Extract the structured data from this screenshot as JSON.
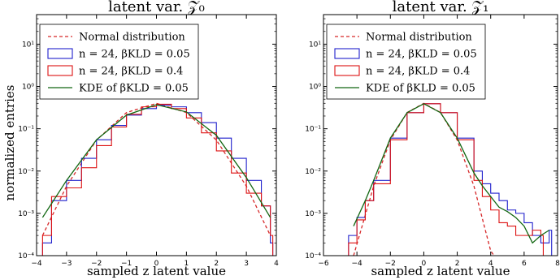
{
  "y_axis_label": "normalized entries",
  "chart_data": [
    {
      "type": "line",
      "title": "latent var. 𝒵₀",
      "xlabel": "sampled z latent value",
      "ylabel": "normalized entries",
      "xlim": [
        -4,
        4
      ],
      "ylim": [
        0.0001,
        50
      ],
      "yscale": "log",
      "xticks": [
        "−4",
        "−3",
        "−2",
        "−1",
        "0",
        "1",
        "2",
        "3",
        "4"
      ],
      "yticks": [
        "10⁻⁴",
        "10⁻³",
        "10⁻²",
        "10⁻¹",
        "10⁰",
        "10¹"
      ],
      "legend_position": "top-left",
      "legend": [
        "Normal distribution",
        "n = 24, βKLD = 0.05",
        "n = 24, βKLD = 0.4",
        "KDE of βKLD = 0.05"
      ],
      "series": [
        {
          "name": "Normal distribution",
          "color": "#d62728",
          "style": "dashed",
          "x": [
            -3.8,
            -3.0,
            -2.0,
            -1.0,
            0.0,
            1.0,
            2.0,
            3.0,
            3.8
          ],
          "y": [
            0.0003,
            0.0044,
            0.054,
            0.242,
            0.399,
            0.242,
            0.054,
            0.0044,
            0.0003
          ]
        },
        {
          "name": "n = 24, βKLD = 0.05",
          "color": "#1f1fcc",
          "style": "step",
          "x": [
            -3.8,
            -3.5,
            -3.0,
            -2.5,
            -2.0,
            -1.5,
            -1.0,
            -0.5,
            0.0,
            0.5,
            1.0,
            1.5,
            2.0,
            2.5,
            3.0,
            3.5,
            3.8
          ],
          "y": [
            0.0002,
            0.002,
            0.006,
            0.02,
            0.055,
            0.12,
            0.21,
            0.3,
            0.36,
            0.33,
            0.24,
            0.14,
            0.06,
            0.02,
            0.006,
            0.0015,
            0.0002
          ]
        },
        {
          "name": "n = 24, βKLD = 0.4",
          "color": "#dd1111",
          "style": "step",
          "x": [
            -3.8,
            -3.5,
            -3.0,
            -2.5,
            -2.0,
            -1.5,
            -1.0,
            -0.5,
            0.0,
            0.5,
            1.0,
            1.5,
            2.0,
            2.5,
            3.0,
            3.5,
            3.8
          ],
          "y": [
            0.0003,
            0.0025,
            0.004,
            0.012,
            0.04,
            0.11,
            0.22,
            0.33,
            0.38,
            0.3,
            0.18,
            0.08,
            0.03,
            0.009,
            0.003,
            0.0015,
            0.0003
          ]
        },
        {
          "name": "KDE of βKLD = 0.05",
          "color": "#116611",
          "style": "solid",
          "x": [
            -3.8,
            -3.0,
            -2.0,
            -1.0,
            0.0,
            1.0,
            2.0,
            3.0,
            3.8
          ],
          "y": [
            0.0008,
            0.006,
            0.055,
            0.21,
            0.37,
            0.25,
            0.07,
            0.007,
            0.0008
          ]
        }
      ]
    },
    {
      "type": "line",
      "title": "latent var. 𝒵₁",
      "xlabel": "sampled z latent value",
      "ylabel": "",
      "xlim": [
        -6,
        8
      ],
      "ylim": [
        0.0001,
        50
      ],
      "yscale": "log",
      "xticks": [
        "−6",
        "−4",
        "−2",
        "0",
        "2",
        "4",
        "6",
        "8"
      ],
      "yticks": [
        "10⁻⁴",
        "10⁻³",
        "10⁻²",
        "10⁻¹",
        "10⁰",
        "10¹"
      ],
      "legend_position": "top-left",
      "legend": [
        "Normal distribution",
        "n = 24, βKLD = 0.05",
        "n = 24, βKLD = 0.4",
        "KDE of βKLD = 0.05"
      ],
      "series": [
        {
          "name": "Normal distribution",
          "color": "#d62728",
          "style": "dashed",
          "x": [
            -4.2,
            -3.0,
            -2.0,
            -1.0,
            0.0,
            1.0,
            2.0,
            3.0,
            4.0,
            4.2
          ],
          "y": [
            0.0001,
            0.0044,
            0.054,
            0.242,
            0.399,
            0.242,
            0.054,
            0.0044,
            0.00013,
            0.0001
          ]
        },
        {
          "name": "n = 24, βKLD = 0.05",
          "color": "#1f1fcc",
          "style": "step",
          "x": [
            -4.5,
            -4.0,
            -3.5,
            -3.0,
            -2.0,
            -1.0,
            0.0,
            1.0,
            2.0,
            3.0,
            3.5,
            4.0,
            4.5,
            5.0,
            5.5,
            6.0,
            6.5,
            7.0,
            7.5
          ],
          "y": [
            0.0003,
            0.0008,
            0.002,
            0.006,
            0.06,
            0.24,
            0.39,
            0.24,
            0.06,
            0.01,
            0.005,
            0.003,
            0.002,
            0.0012,
            0.001,
            0.0006,
            0.0003,
            0.0002,
            0.0004
          ]
        },
        {
          "name": "n = 24, βKLD = 0.4",
          "color": "#dd1111",
          "style": "step",
          "x": [
            -4.5,
            -4.0,
            -3.5,
            -3.0,
            -2.0,
            -1.0,
            0.0,
            1.0,
            2.0,
            3.0,
            3.5,
            4.0,
            4.5,
            5.0,
            5.5,
            6.0,
            6.5,
            7.0
          ],
          "y": [
            0.0002,
            0.0007,
            0.002,
            0.005,
            0.055,
            0.24,
            0.39,
            0.24,
            0.055,
            0.006,
            0.0025,
            0.0012,
            0.0006,
            0.0005,
            0.0003,
            0.0003,
            0.0004,
            0.0003
          ]
        },
        {
          "name": "KDE of βKLD = 0.05",
          "color": "#116611",
          "style": "solid",
          "x": [
            -4.2,
            -3.5,
            -3.0,
            -2.0,
            -1.0,
            0.0,
            1.0,
            2.0,
            3.0,
            3.5,
            4.0,
            4.5,
            5.0,
            5.5,
            6.0,
            6.5,
            7.0,
            7.5
          ],
          "y": [
            0.0005,
            0.002,
            0.006,
            0.06,
            0.24,
            0.39,
            0.24,
            0.06,
            0.009,
            0.0045,
            0.0025,
            0.0014,
            0.0011,
            0.0008,
            0.0005,
            0.0002,
            0.0003,
            0.0004
          ]
        }
      ]
    }
  ]
}
